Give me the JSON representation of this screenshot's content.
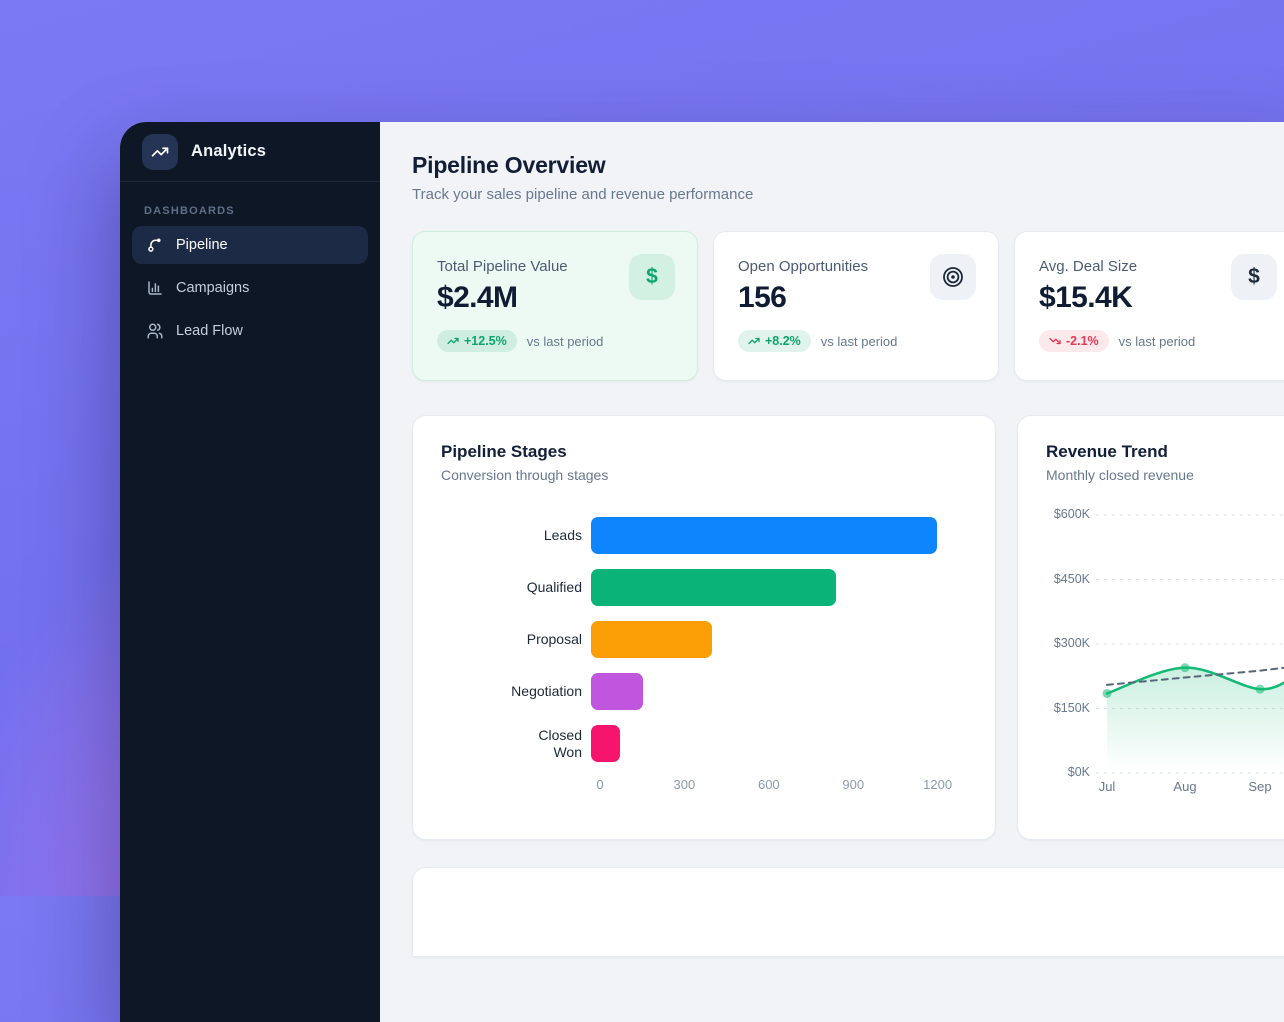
{
  "app": {
    "name": "Analytics",
    "logo_icon": "trending-up-icon"
  },
  "sidebar": {
    "section_label": "DASHBOARDS",
    "items": [
      {
        "label": "Pipeline",
        "icon": "pipeline-route-icon",
        "active": true
      },
      {
        "label": "Campaigns",
        "icon": "bar-chart-icon",
        "active": false
      },
      {
        "label": "Lead Flow",
        "icon": "users-icon",
        "active": false
      }
    ]
  },
  "header": {
    "title": "Pipeline Overview",
    "subtitle": "Track your sales pipeline and revenue performance"
  },
  "kpis": [
    {
      "label": "Total Pipeline Value",
      "value": "$2.4M",
      "delta": "+12.5%",
      "delta_direction": "up",
      "compare_label": "vs last period",
      "icon": "dollar-icon",
      "highlighted": true
    },
    {
      "label": "Open Opportunities",
      "value": "156",
      "delta": "+8.2%",
      "delta_direction": "up",
      "compare_label": "vs last period",
      "icon": "target-icon",
      "highlighted": false
    },
    {
      "label": "Avg. Deal Size",
      "value": "$15.4K",
      "delta": "-2.1%",
      "delta_direction": "down",
      "compare_label": "vs last period",
      "icon": "dollar-icon",
      "highlighted": false
    }
  ],
  "colors": {
    "positive_green": "#0da56b",
    "negative_red": "#e23a55",
    "sidebar_bg": "#0e1726",
    "page_purple": "#7370ee",
    "main_bg": "#f1f3f7"
  },
  "chart_data": [
    {
      "id": "pipeline_stages",
      "type": "bar",
      "orientation": "horizontal",
      "title": "Pipeline Stages",
      "subtitle": "Conversion through stages",
      "categories": [
        "Leads",
        "Qualified",
        "Proposal",
        "Negotiation",
        "Closed\nWon"
      ],
      "values": [
        1200,
        850,
        420,
        180,
        100
      ],
      "bar_colors": [
        "#0e85fd",
        "#0ab377",
        "#fb9e06",
        "#c055de",
        "#f7146c"
      ],
      "xticks": [
        0,
        300,
        600,
        900,
        1200
      ],
      "xlim": [
        0,
        1305
      ],
      "grid": false
    },
    {
      "id": "revenue_trend",
      "type": "line",
      "title": "Revenue Trend",
      "subtitle": "Monthly closed revenue",
      "x": [
        "Jul",
        "Aug",
        "Sep"
      ],
      "series": [
        {
          "name": "revenue",
          "style": "solid",
          "color": "#12ba75",
          "values": [
            185,
            245,
            195
          ],
          "edge_value": 228,
          "area": true,
          "dots": true
        },
        {
          "name": "trend",
          "style": "dashed",
          "color": "#57657b",
          "values": [
            205,
            222,
            238
          ],
          "edge_value": 248,
          "area": false,
          "dots": false
        }
      ],
      "ylim": [
        0,
        600
      ],
      "ytick_labels": [
        "$0K",
        "$150K",
        "$300K",
        "$450K",
        "$600K"
      ],
      "unit": "$K",
      "grid": "dashed-horizontal",
      "clipped_right": true
    }
  ]
}
